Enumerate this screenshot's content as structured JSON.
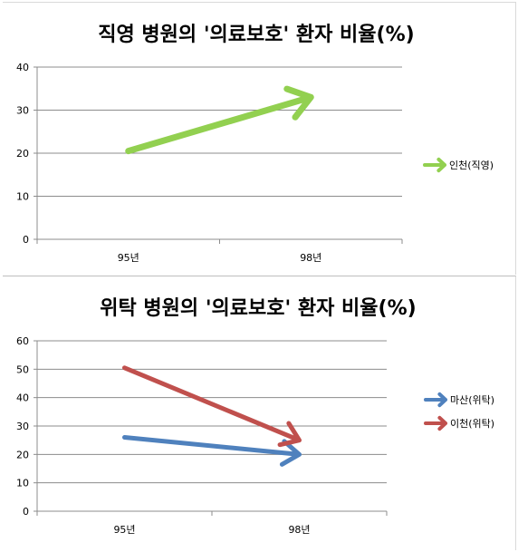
{
  "chart_data": [
    {
      "type": "line",
      "title": "직영 병원의 '의료보호' 환자 비율(%)",
      "categories": [
        "95년",
        "98년"
      ],
      "series": [
        {
          "name": "인천(직영)",
          "values": [
            20.5,
            33
          ],
          "color": "#92D050"
        }
      ],
      "ylim": [
        0,
        40
      ],
      "yticks": [
        0,
        10,
        20,
        30,
        40
      ],
      "grid": true,
      "legend": "right",
      "marker": "arrow"
    },
    {
      "type": "line",
      "title": "위탁 병원의 '의료보호' 환자 비율(%)",
      "categories": [
        "95년",
        "98년"
      ],
      "series": [
        {
          "name": "마산(위탁)",
          "values": [
            26,
            20
          ],
          "color": "#4F81BD"
        },
        {
          "name": "이천(위탁)",
          "values": [
            50.5,
            25
          ],
          "color": "#C0504D"
        }
      ],
      "ylim": [
        0,
        60
      ],
      "yticks": [
        0,
        10,
        20,
        30,
        40,
        50,
        60
      ],
      "grid": true,
      "legend": "right",
      "marker": "arrow"
    }
  ]
}
